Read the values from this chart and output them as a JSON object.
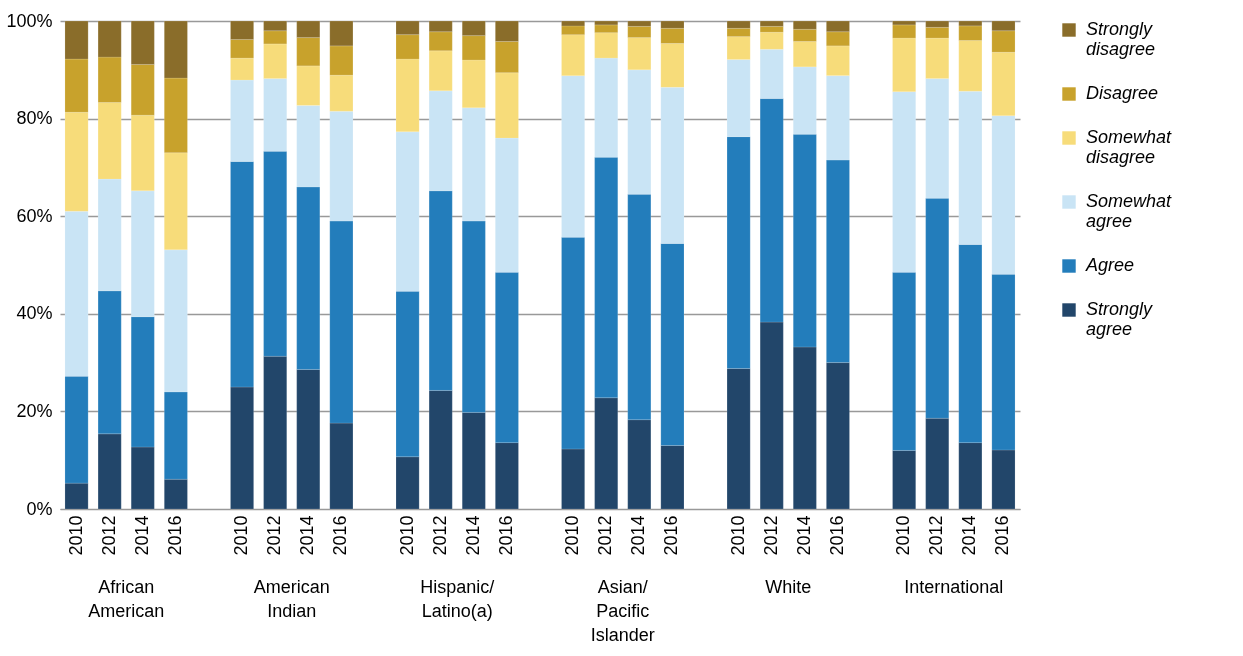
{
  "chart_data": {
    "type": "bar",
    "stacked": true,
    "categories": [
      "2010",
      "2012",
      "2014",
      "2016",
      null,
      "2010",
      "2012",
      "2014",
      "2016",
      null,
      "2010",
      "2012",
      "2014",
      "2016",
      null,
      "2010",
      "2012",
      "2014",
      "2016",
      null,
      "2010",
      "2012",
      "2014",
      "2016",
      null,
      "2010",
      "2012",
      "2014",
      "2016"
    ],
    "annotations": [
      "African American",
      "American Indian",
      "Hispanic/Latino(a)",
      "Asian/Pacific Islander",
      "White",
      "International"
    ],
    "series": [
      {
        "name": "Strongly agree",
        "color": "#22466a",
        "values": [
          5.3,
          15.4,
          12.7,
          6.1,
          null,
          25.0,
          31.3,
          28.6,
          17.6,
          null,
          10.7,
          24.3,
          19.8,
          13.6,
          null,
          12.3,
          22.8,
          18.3,
          13.0,
          null,
          28.8,
          38.3,
          33.2,
          30.0,
          null,
          12.0,
          18.6,
          13.6,
          12.1
        ]
      },
      {
        "name": "Agree",
        "color": "#237dbb",
        "values": [
          21.9,
          29.3,
          26.7,
          17.9,
          null,
          46.2,
          42.0,
          37.4,
          41.4,
          null,
          33.9,
          40.9,
          39.2,
          34.9,
          null,
          43.4,
          49.3,
          46.2,
          41.4,
          null,
          47.5,
          45.8,
          43.6,
          41.5,
          null,
          36.5,
          45.1,
          40.6,
          36.0
        ]
      },
      {
        "name": "Somewhat agree",
        "color": "#c9e4f5",
        "values": [
          33.8,
          22.9,
          25.8,
          29.1,
          null,
          16.7,
          14.9,
          16.7,
          22.5,
          null,
          32.7,
          20.5,
          23.2,
          27.5,
          null,
          33.1,
          20.3,
          25.5,
          32.0,
          null,
          15.8,
          10.1,
          13.8,
          17.3,
          null,
          37.0,
          24.5,
          31.4,
          32.5
        ]
      },
      {
        "name": "Somewhat disagree",
        "color": "#f7dc7a",
        "values": [
          20.3,
          15.7,
          15.5,
          19.9,
          null,
          4.5,
          7.1,
          8.1,
          7.4,
          null,
          14.9,
          8.2,
          9.8,
          13.4,
          null,
          8.4,
          5.2,
          6.6,
          9.0,
          null,
          4.7,
          3.5,
          5.2,
          6.1,
          null,
          11.0,
          8.3,
          10.4,
          13.0
        ]
      },
      {
        "name": "Disagree",
        "color": "#c8a22c",
        "values": [
          10.9,
          9.3,
          10.4,
          15.3,
          null,
          3.8,
          2.7,
          5.8,
          6.0,
          null,
          5.0,
          3.9,
          5.0,
          6.4,
          null,
          1.8,
          1.6,
          2.3,
          3.1,
          null,
          1.7,
          1.2,
          2.5,
          2.9,
          null,
          2.7,
          2.2,
          3.0,
          4.4
        ]
      },
      {
        "name": "Strongly disagree",
        "color": "#8a6d2a",
        "values": [
          7.8,
          7.4,
          8.9,
          11.7,
          null,
          3.8,
          2.0,
          3.4,
          5.1,
          null,
          2.8,
          2.2,
          3.0,
          4.2,
          null,
          1.0,
          0.8,
          1.1,
          1.5,
          null,
          1.5,
          1.1,
          1.7,
          2.2,
          null,
          0.8,
          1.3,
          1.0,
          2.0
        ]
      }
    ],
    "ylim": [
      0,
      100
    ],
    "yticks": [
      {
        "value": 0,
        "label": "0%"
      },
      {
        "value": 20,
        "label": "20%"
      },
      {
        "value": 40,
        "label": "40%"
      },
      {
        "value": 60,
        "label": "60%"
      },
      {
        "value": 80,
        "label": "80%"
      },
      {
        "value": 100,
        "label": "100%"
      }
    ],
    "grid": "y",
    "legend": "right"
  }
}
